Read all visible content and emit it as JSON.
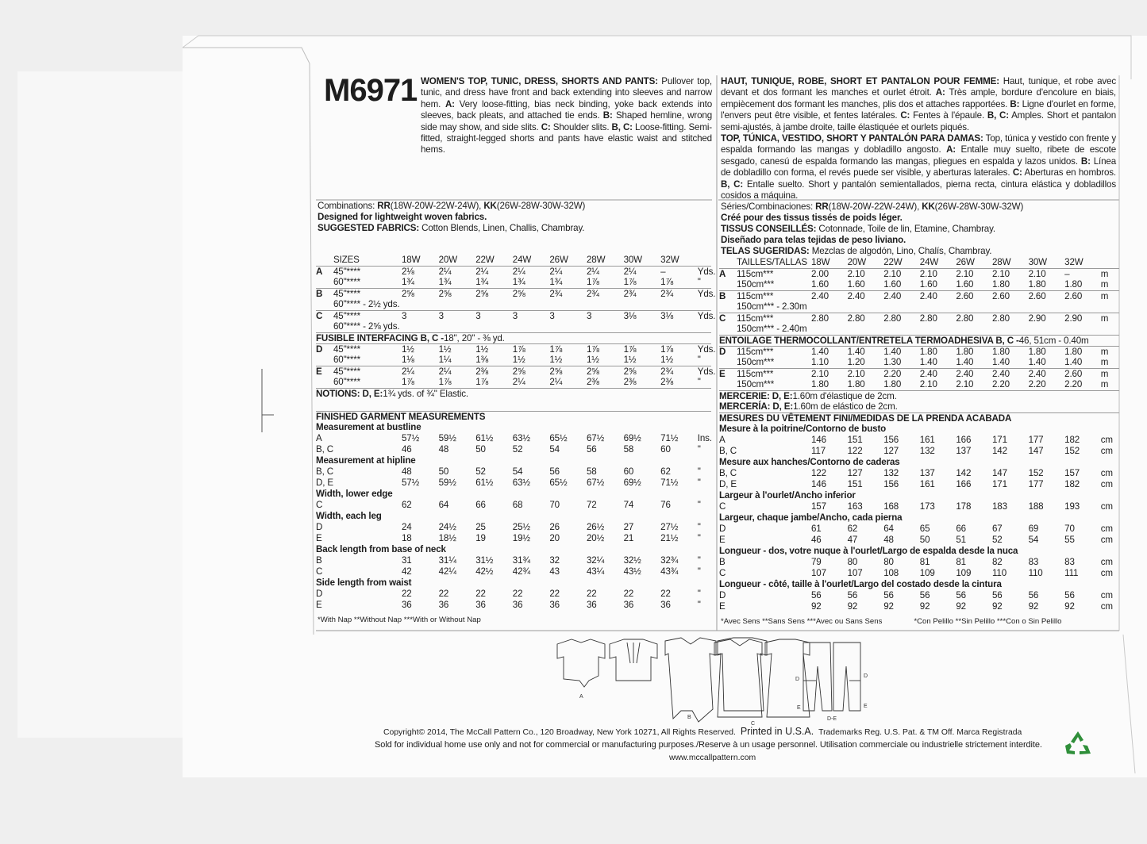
{
  "pattern_number": "M6971",
  "left": {
    "description": [
      {
        "b": true,
        "t": "WOMEN'S TOP, TUNIC, DRESS, SHORTS AND PANTS:"
      },
      {
        "b": false,
        "t": " Pullover top, tunic, and dress have front and back extending into sleeves and narrow hem. "
      },
      {
        "b": true,
        "t": "A:"
      },
      {
        "b": false,
        "t": " Very loose-fitting, bias neck binding, yoke back extends into sleeves, back pleats, and attached tie ends. "
      },
      {
        "b": true,
        "t": "B:"
      },
      {
        "b": false,
        "t": " Shaped hemline, wrong side may show, and side slits. "
      },
      {
        "b": true,
        "t": "C:"
      },
      {
        "b": false,
        "t": " Shoulder slits. "
      },
      {
        "b": true,
        "t": "B, C:"
      },
      {
        "b": false,
        "t": " Loose-fitting. Semi-fitted, straight-legged shorts and pants have elastic waist and stitched hems."
      }
    ],
    "info_lines": [
      [
        {
          "b": false,
          "t": "Combinations: "
        },
        {
          "b": true,
          "t": "RR"
        },
        {
          "b": false,
          "t": "(18W-20W-22W-24W), "
        },
        {
          "b": true,
          "t": "KK"
        },
        {
          "b": false,
          "t": "(26W-28W-30W-32W)"
        }
      ],
      [
        {
          "b": true,
          "t": "Designed for lightweight woven fabrics."
        }
      ],
      [
        {
          "b": true,
          "t": "SUGGESTED FABRICS:"
        },
        {
          "b": false,
          "t": " Cotton Blends, Linen, Challis, Chambray."
        }
      ]
    ],
    "yardage": [
      {
        "type": "row",
        "view": "",
        "width": "SIZES",
        "values": [
          "18W",
          "20W",
          "22W",
          "24W",
          "26W",
          "28W",
          "30W",
          "32W"
        ],
        "unit": ""
      },
      {
        "type": "row",
        "sep": true,
        "view": "A",
        "width": "45\"****",
        "values": [
          "2⅛",
          "2¼",
          "2¼",
          "2¼",
          "2¼",
          "2¼",
          "2¼",
          "–"
        ],
        "unit": "Yds."
      },
      {
        "type": "row",
        "view": "",
        "width": "60\"****",
        "values": [
          "1¾",
          "1¾",
          "1¾",
          "1¾",
          "1¾",
          "1⅞",
          "1⅞",
          "1⅞"
        ],
        "unit": "\""
      },
      {
        "type": "row",
        "sep": true,
        "view": "B",
        "width": "45\"****",
        "values": [
          "2⅝",
          "2⅝",
          "2⅝",
          "2⅝",
          "2¾",
          "2¾",
          "2¾",
          "2¾"
        ],
        "unit": "Yds."
      },
      {
        "type": "note",
        "view": "",
        "text": "60\"**** - 2½ yds."
      },
      {
        "type": "row",
        "sep": true,
        "view": "C",
        "width": "45\"****",
        "values": [
          "3",
          "3",
          "3",
          "3",
          "3",
          "3",
          "3⅛",
          "3⅛"
        ],
        "unit": "Yds."
      },
      {
        "type": "note",
        "view": "",
        "text": "60\"**** - 2⅝ yds."
      },
      {
        "type": "title",
        "sep": true,
        "segs": [
          {
            "b": true,
            "t": "FUSIBLE INTERFACING B, C - "
          },
          {
            "b": false,
            "t": "18\", 20\" - ⅜ yd."
          }
        ]
      },
      {
        "type": "row",
        "sep": true,
        "view": "D",
        "width": "45\"****",
        "values": [
          "1½",
          "1½",
          "1½",
          "1⅞",
          "1⅞",
          "1⅞",
          "1⅞",
          "1⅞"
        ],
        "unit": "Yds."
      },
      {
        "type": "row",
        "view": "",
        "width": "60\"****",
        "values": [
          "1⅛",
          "1¼",
          "1⅜",
          "1½",
          "1½",
          "1½",
          "1½",
          "1½"
        ],
        "unit": "\""
      },
      {
        "type": "row",
        "sep": true,
        "view": "E",
        "width": "45\"****",
        "values": [
          "2¼",
          "2¼",
          "2⅜",
          "2⅝",
          "2⅝",
          "2⅝",
          "2⅝",
          "2¾"
        ],
        "unit": "Yds."
      },
      {
        "type": "row",
        "view": "",
        "width": "60\"****",
        "values": [
          "1⅞",
          "1⅞",
          "1⅞",
          "2¼",
          "2¼",
          "2⅜",
          "2⅜",
          "2⅜"
        ],
        "unit": "\""
      },
      {
        "type": "title",
        "sep": true,
        "segs": [
          {
            "b": true,
            "t": "NOTIONS: D, E:"
          },
          {
            "b": false,
            "t": " 1¾ yds. of ¾\" Elastic."
          }
        ]
      }
    ],
    "measurements": [
      {
        "type": "heading",
        "text": "FINISHED GARMENT MEASUREMENTS",
        "sep": true
      },
      {
        "type": "heading",
        "text": "Measurement at bustline"
      },
      {
        "type": "row",
        "label": "A",
        "values": [
          "57½",
          "59½",
          "61½",
          "63½",
          "65½",
          "67½",
          "69½",
          "71½"
        ],
        "unit": "Ins."
      },
      {
        "type": "row",
        "label": "B, C",
        "values": [
          "46",
          "48",
          "50",
          "52",
          "54",
          "56",
          "58",
          "60"
        ],
        "unit": "\""
      },
      {
        "type": "heading",
        "text": "Measurement at hipline"
      },
      {
        "type": "row",
        "label": "B, C",
        "values": [
          "48",
          "50",
          "52",
          "54",
          "56",
          "58",
          "60",
          "62"
        ],
        "unit": "\""
      },
      {
        "type": "row",
        "label": "D, E",
        "values": [
          "57½",
          "59½",
          "61½",
          "63½",
          "65½",
          "67½",
          "69½",
          "71½"
        ],
        "unit": "\""
      },
      {
        "type": "heading",
        "text": "Width, lower edge"
      },
      {
        "type": "row",
        "label": "C",
        "values": [
          "62",
          "64",
          "66",
          "68",
          "70",
          "72",
          "74",
          "76"
        ],
        "unit": "\""
      },
      {
        "type": "heading",
        "text": "Width, each leg"
      },
      {
        "type": "row",
        "label": "D",
        "values": [
          "24",
          "24½",
          "25",
          "25½",
          "26",
          "26½",
          "27",
          "27½"
        ],
        "unit": "\""
      },
      {
        "type": "row",
        "label": "E",
        "values": [
          "18",
          "18½",
          "19",
          "19½",
          "20",
          "20½",
          "21",
          "21½"
        ],
        "unit": "\""
      },
      {
        "type": "heading",
        "text": "Back length from base of neck"
      },
      {
        "type": "row",
        "label": "B",
        "values": [
          "31",
          "31¼",
          "31½",
          "31¾",
          "32",
          "32¼",
          "32½",
          "32¾"
        ],
        "unit": "\""
      },
      {
        "type": "row",
        "label": "C",
        "values": [
          "42",
          "42¼",
          "42½",
          "42¾",
          "43",
          "43¼",
          "43½",
          "43¾"
        ],
        "unit": "\""
      },
      {
        "type": "heading",
        "text": "Side length from waist"
      },
      {
        "type": "row",
        "label": "D",
        "values": [
          "22",
          "22",
          "22",
          "22",
          "22",
          "22",
          "22",
          "22"
        ],
        "unit": "\""
      },
      {
        "type": "row",
        "label": "E",
        "values": [
          "36",
          "36",
          "36",
          "36",
          "36",
          "36",
          "36",
          "36"
        ],
        "unit": "\""
      }
    ],
    "footnote": "*With Nap **Without Nap ***With or Without Nap"
  },
  "right": {
    "description": [
      {
        "b": true,
        "t": "HAUT, TUNIQUE, ROBE, SHORT ET PANTALON POUR FEMME:"
      },
      {
        "b": false,
        "t": " Haut, tunique, et robe avec devant et dos formant les manches et ourlet étroit. "
      },
      {
        "b": true,
        "t": "A:"
      },
      {
        "b": false,
        "t": " Très ample, bordure d'encolure en biais, empiècement dos formant les manches, plis dos et attaches rapportées. "
      },
      {
        "b": true,
        "t": "B:"
      },
      {
        "b": false,
        "t": " Ligne d'ourlet en forme, l'envers peut être visible, et fentes latérales. "
      },
      {
        "b": true,
        "t": "C:"
      },
      {
        "b": false,
        "t": " Fentes à l'épaule. "
      },
      {
        "b": true,
        "t": "B, C:"
      },
      {
        "b": false,
        "t": " Amples. Short et pantalon semi-ajustés, à jambe droite, taille élastiquée et ourlets piqués."
      }
    ],
    "description_es": [
      {
        "b": true,
        "t": "TOP, TÚNICA, VESTIDO, SHORT Y PANTALÓN PARA DAMAS:"
      },
      {
        "b": false,
        "t": " Top, túnica y vestido con frente y espalda formando las mangas y dobladillo angosto. "
      },
      {
        "b": true,
        "t": "A:"
      },
      {
        "b": false,
        "t": " Entalle muy suelto, ribete de escote sesgado, canesú de espalda formando las mangas, pliegues en espalda y lazos unidos. "
      },
      {
        "b": true,
        "t": "B:"
      },
      {
        "b": false,
        "t": " Línea de dobladillo con forma, el revés puede ser visible, y aberturas laterales. "
      },
      {
        "b": true,
        "t": "C:"
      },
      {
        "b": false,
        "t": " Aberturas en hombros. "
      },
      {
        "b": true,
        "t": "B, C:"
      },
      {
        "b": false,
        "t": " Entalle suelto. Short y pantalón semientallados, pierna recta, cintura elástica y dobladillos cosidos a máquina."
      }
    ],
    "info_lines": [
      [
        {
          "b": false,
          "t": "Séries/Combinaciones: "
        },
        {
          "b": true,
          "t": "RR"
        },
        {
          "b": false,
          "t": "(18W-20W-22W-24W), "
        },
        {
          "b": true,
          "t": "KK"
        },
        {
          "b": false,
          "t": "(26W-28W-30W-32W)"
        }
      ],
      [
        {
          "b": true,
          "t": "Créé pour des tissus tissés de poids léger."
        }
      ],
      [
        {
          "b": true,
          "t": "TISSUS CONSEILLÉS:"
        },
        {
          "b": false,
          "t": " Cotonnade, Toile de lin, Etamine, Chambray."
        }
      ],
      [
        {
          "b": true,
          "t": "Diseñado para telas tejidas de peso liviano."
        }
      ],
      [
        {
          "b": true,
          "t": "TELAS SUGERIDAS:"
        },
        {
          "b": false,
          "t": " Mezclas de algodón, Lino, Chalís, Chambray."
        }
      ]
    ],
    "yardage": [
      {
        "type": "row",
        "view": "",
        "width": "TAILLES/TALLAS",
        "values": [
          "18W",
          "20W",
          "22W",
          "24W",
          "26W",
          "28W",
          "30W",
          "32W"
        ],
        "unit": ""
      },
      {
        "type": "row",
        "sep": true,
        "view": "A",
        "width": "115cm***",
        "values": [
          "2.00",
          "2.10",
          "2.10",
          "2.10",
          "2.10",
          "2.10",
          "2.10",
          "–"
        ],
        "unit": "m"
      },
      {
        "type": "row",
        "view": "",
        "width": "150cm***",
        "values": [
          "1.60",
          "1.60",
          "1.60",
          "1.60",
          "1.60",
          "1.80",
          "1.80",
          "1.80"
        ],
        "unit": "m"
      },
      {
        "type": "row",
        "sep": true,
        "view": "B",
        "width": "115cm***",
        "values": [
          "2.40",
          "2.40",
          "2.40",
          "2.40",
          "2.60",
          "2.60",
          "2.60",
          "2.60"
        ],
        "unit": "m"
      },
      {
        "type": "note",
        "view": "",
        "text": "150cm*** - 2.30m"
      },
      {
        "type": "row",
        "sep": true,
        "view": "C",
        "width": "115cm***",
        "values": [
          "2.80",
          "2.80",
          "2.80",
          "2.80",
          "2.80",
          "2.80",
          "2.90",
          "2.90"
        ],
        "unit": "m"
      },
      {
        "type": "note",
        "view": "",
        "text": "150cm*** - 2.40m"
      },
      {
        "type": "title",
        "sep": true,
        "segs": [
          {
            "b": true,
            "t": "ENTOILAGE THERMOCOLLANT/ENTRETELA TERMOADHESIVA B, C - "
          },
          {
            "b": false,
            "t": "46, 51cm - 0.40m"
          }
        ]
      },
      {
        "type": "row",
        "sep": true,
        "view": "D",
        "width": "115cm***",
        "values": [
          "1.40",
          "1.40",
          "1.40",
          "1.80",
          "1.80",
          "1.80",
          "1.80",
          "1.80"
        ],
        "unit": "m"
      },
      {
        "type": "row",
        "view": "",
        "width": "150cm***",
        "values": [
          "1.10",
          "1.20",
          "1.30",
          "1.40",
          "1.40",
          "1.40",
          "1.40",
          "1.40"
        ],
        "unit": "m"
      },
      {
        "type": "row",
        "sep": true,
        "view": "E",
        "width": "115cm***",
        "values": [
          "2.10",
          "2.10",
          "2.20",
          "2.40",
          "2.40",
          "2.40",
          "2.40",
          "2.60"
        ],
        "unit": "m"
      },
      {
        "type": "row",
        "view": "",
        "width": "150cm***",
        "values": [
          "1.80",
          "1.80",
          "1.80",
          "2.10",
          "2.10",
          "2.20",
          "2.20",
          "2.20"
        ],
        "unit": "m"
      },
      {
        "type": "title",
        "sep": true,
        "segs": [
          {
            "b": true,
            "t": "MERCERIE: D, E:"
          },
          {
            "b": false,
            "t": " 1.60m d'élastique de 2cm."
          }
        ]
      },
      {
        "type": "title",
        "segs": [
          {
            "b": true,
            "t": "MERCERÍA: D, E:"
          },
          {
            "b": false,
            "t": " 1.60m de elástico de 2cm."
          }
        ]
      }
    ],
    "measurements": [
      {
        "type": "heading",
        "text": "MESURES DU VÊTEMENT FINI/MEDIDAS DE LA PRENDA ACABADA",
        "sep": true
      },
      {
        "type": "heading",
        "text": "Mesure à la poitrine/Contorno de busto"
      },
      {
        "type": "row",
        "label": "A",
        "values": [
          "146",
          "151",
          "156",
          "161",
          "166",
          "171",
          "177",
          "182"
        ],
        "unit": "cm"
      },
      {
        "type": "row",
        "label": "B, C",
        "values": [
          "117",
          "122",
          "127",
          "132",
          "137",
          "142",
          "147",
          "152"
        ],
        "unit": "cm"
      },
      {
        "type": "heading",
        "text": "Mesure aux hanches/Contorno de caderas"
      },
      {
        "type": "row",
        "label": "B, C",
        "values": [
          "122",
          "127",
          "132",
          "137",
          "142",
          "147",
          "152",
          "157"
        ],
        "unit": "cm"
      },
      {
        "type": "row",
        "label": "D, E",
        "values": [
          "146",
          "151",
          "156",
          "161",
          "166",
          "171",
          "177",
          "182"
        ],
        "unit": "cm"
      },
      {
        "type": "heading",
        "text": "Largeur à l'ourlet/Ancho inferior"
      },
      {
        "type": "row",
        "label": "C",
        "values": [
          "157",
          "163",
          "168",
          "173",
          "178",
          "183",
          "188",
          "193"
        ],
        "unit": "cm"
      },
      {
        "type": "heading",
        "text": "Largeur, chaque jambe/Ancho, cada pierna"
      },
      {
        "type": "row",
        "label": "D",
        "values": [
          "61",
          "62",
          "64",
          "65",
          "66",
          "67",
          "69",
          "70"
        ],
        "unit": "cm"
      },
      {
        "type": "row",
        "label": "E",
        "values": [
          "46",
          "47",
          "48",
          "50",
          "51",
          "52",
          "54",
          "55"
        ],
        "unit": "cm"
      },
      {
        "type": "heading",
        "text": "Longueur - dos, votre nuque à l'ourlet/Largo de espalda desde la nuca"
      },
      {
        "type": "row",
        "label": "B",
        "values": [
          "79",
          "80",
          "80",
          "81",
          "81",
          "82",
          "83",
          "83"
        ],
        "unit": "cm"
      },
      {
        "type": "row",
        "label": "C",
        "values": [
          "107",
          "107",
          "108",
          "109",
          "109",
          "110",
          "110",
          "111"
        ],
        "unit": "cm"
      },
      {
        "type": "heading",
        "text": "Longueur - côté, taille à l'ourlet/Largo del costado desde la cintura"
      },
      {
        "type": "row",
        "label": "D",
        "values": [
          "56",
          "56",
          "56",
          "56",
          "56",
          "56",
          "56",
          "56"
        ],
        "unit": "cm"
      },
      {
        "type": "row",
        "label": "E",
        "values": [
          "92",
          "92",
          "92",
          "92",
          "92",
          "92",
          "92",
          "92"
        ],
        "unit": "cm"
      }
    ],
    "footnote_fr": "*Avec Sens **Sans Sens ***Avec ou Sans Sens",
    "footnote_es": "*Con Pelillo **Sin Pelillo ***Con o Sin Pelillo"
  },
  "illustrations": {
    "label_a": "A",
    "label_b": "B",
    "label_c": "C",
    "label_d": "D",
    "label_d2": "D",
    "label_e": "E",
    "label_e2": "E",
    "label_de": "D-E"
  },
  "footer": {
    "copyright": "Copyright© 2014, The McCall Pattern Co., 120 Broadway, New York 10271, All Rights Reserved.",
    "printed": "Printed in U.S.A.",
    "trademarks": "Trademarks Reg. U.S. Pat. & TM Off. Marca Registrada",
    "usage": "Sold for individual home use only and not for commercial or manufacturing purposes./Reserve à un usage personnel. Utilisation commerciale ou industrielle strictement interdite.",
    "website": "www.mccallpattern.com",
    "recycle_icon": "recycle-icon"
  },
  "colors": {
    "paper": "#fbfbfb",
    "background": "#efefef",
    "recycle": "#2f8f3a"
  }
}
